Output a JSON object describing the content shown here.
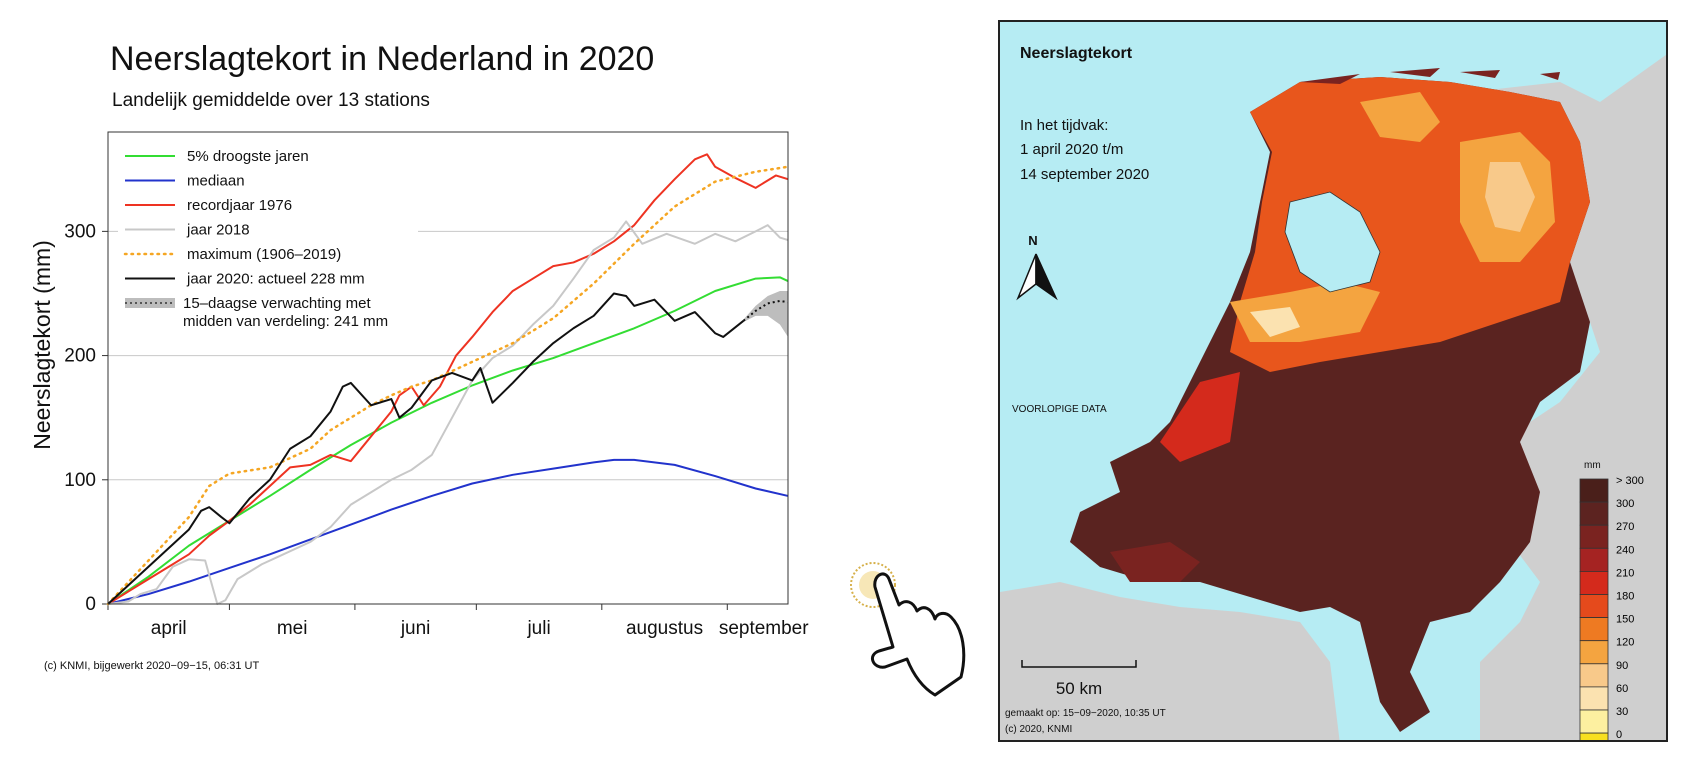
{
  "chart_data": [
    {
      "type": "line",
      "title": "Neerslagtekort in Nederland in 2020",
      "subtitle": "Landelijk gemiddelde over 13 stations",
      "ylabel": "Neerslagtekort (mm)",
      "ylim": [
        0,
        380
      ],
      "yticks": [
        0,
        100,
        200,
        300
      ],
      "xlim": [
        0,
        168
      ],
      "month_labels": [
        {
          "label": "april",
          "x": 15
        },
        {
          "label": "mei",
          "x": 45.5
        },
        {
          "label": "juni",
          "x": 76
        },
        {
          "label": "juli",
          "x": 106.5
        },
        {
          "label": "augustus",
          "x": 137.5
        },
        {
          "label": "september",
          "x": 162
        }
      ],
      "grid": "horizontal",
      "legend_position": "top-left",
      "series": [
        {
          "name": "5% droogste jaren",
          "color": "#33dd33",
          "style": "solid",
          "points": [
            [
              0,
              0
            ],
            [
              10,
              22
            ],
            [
              20,
              47
            ],
            [
              30,
              67
            ],
            [
              40,
              87
            ],
            [
              50,
              108
            ],
            [
              60,
              128
            ],
            [
              70,
              146
            ],
            [
              80,
              162
            ],
            [
              90,
              176
            ],
            [
              100,
              188
            ],
            [
              110,
              198
            ],
            [
              120,
              210
            ],
            [
              130,
              222
            ],
            [
              140,
              236
            ],
            [
              150,
              252
            ],
            [
              160,
              262
            ],
            [
              166,
              263
            ],
            [
              168,
              260
            ]
          ]
        },
        {
          "name": "mediaan",
          "color": "#2233cc",
          "style": "solid",
          "points": [
            [
              0,
              0
            ],
            [
              10,
              8
            ],
            [
              20,
              18
            ],
            [
              30,
              29
            ],
            [
              40,
              40
            ],
            [
              50,
              52
            ],
            [
              60,
              64
            ],
            [
              70,
              76
            ],
            [
              80,
              87
            ],
            [
              90,
              97
            ],
            [
              100,
              104
            ],
            [
              110,
              109
            ],
            [
              120,
              114
            ],
            [
              125,
              116
            ],
            [
              130,
              116
            ],
            [
              140,
              112
            ],
            [
              150,
              103
            ],
            [
              160,
              93
            ],
            [
              168,
              87
            ]
          ]
        },
        {
          "name": "recordjaar 1976",
          "color": "#ee3322",
          "style": "solid",
          "points": [
            [
              0,
              0
            ],
            [
              5,
              10
            ],
            [
              10,
              20
            ],
            [
              15,
              30
            ],
            [
              20,
              40
            ],
            [
              25,
              55
            ],
            [
              30,
              67
            ],
            [
              35,
              80
            ],
            [
              40,
              95
            ],
            [
              45,
              110
            ],
            [
              50,
              112
            ],
            [
              55,
              120
            ],
            [
              60,
              115
            ],
            [
              65,
              135
            ],
            [
              70,
              155
            ],
            [
              72,
              168
            ],
            [
              75,
              175
            ],
            [
              78,
              160
            ],
            [
              82,
              175
            ],
            [
              86,
              200
            ],
            [
              90,
              215
            ],
            [
              95,
              235
            ],
            [
              100,
              252
            ],
            [
              105,
              262
            ],
            [
              110,
              272
            ],
            [
              115,
              275
            ],
            [
              120,
              282
            ],
            [
              125,
              292
            ],
            [
              130,
              305
            ],
            [
              135,
              325
            ],
            [
              140,
              342
            ],
            [
              145,
              358
            ],
            [
              148,
              362
            ],
            [
              150,
              352
            ],
            [
              155,
              343
            ],
            [
              160,
              335
            ],
            [
              165,
              345
            ],
            [
              168,
              342
            ]
          ]
        },
        {
          "name": "jaar 2018",
          "color": "#c8c8c8",
          "style": "solid",
          "points": [
            [
              0,
              0
            ],
            [
              5,
              2
            ],
            [
              8,
              8
            ],
            [
              12,
              12
            ],
            [
              16,
              30
            ],
            [
              20,
              36
            ],
            [
              24,
              35
            ],
            [
              27,
              0
            ],
            [
              29,
              3
            ],
            [
              32,
              20
            ],
            [
              38,
              32
            ],
            [
              42,
              38
            ],
            [
              50,
              50
            ],
            [
              55,
              62
            ],
            [
              60,
              80
            ],
            [
              65,
              90
            ],
            [
              70,
              100
            ],
            [
              75,
              108
            ],
            [
              80,
              120
            ],
            [
              85,
              150
            ],
            [
              90,
              180
            ],
            [
              95,
              198
            ],
            [
              100,
              208
            ],
            [
              105,
              225
            ],
            [
              110,
              240
            ],
            [
              115,
              262
            ],
            [
              120,
              285
            ],
            [
              125,
              295
            ],
            [
              128,
              308
            ],
            [
              132,
              290
            ],
            [
              138,
              298
            ],
            [
              145,
              290
            ],
            [
              150,
              298
            ],
            [
              155,
              292
            ],
            [
              160,
              300
            ],
            [
              163,
              305
            ],
            [
              166,
              295
            ],
            [
              168,
              293
            ]
          ]
        },
        {
          "name": "maximum (1906–2019)",
          "color": "#f5a623",
          "style": "dotted",
          "points": [
            [
              0,
              0
            ],
            [
              10,
              35
            ],
            [
              20,
              70
            ],
            [
              25,
              95
            ],
            [
              30,
              105
            ],
            [
              40,
              110
            ],
            [
              50,
              125
            ],
            [
              55,
              140
            ],
            [
              60,
              150
            ],
            [
              65,
              160
            ],
            [
              70,
              168
            ],
            [
              75,
              175
            ],
            [
              80,
              180
            ],
            [
              90,
              195
            ],
            [
              100,
              210
            ],
            [
              110,
              230
            ],
            [
              120,
              258
            ],
            [
              130,
              290
            ],
            [
              140,
              320
            ],
            [
              150,
              340
            ],
            [
              160,
              348
            ],
            [
              168,
              352
            ]
          ]
        },
        {
          "name": "jaar 2020: actueel 228 mm",
          "color": "#111111",
          "style": "solid",
          "points": [
            [
              0,
              0
            ],
            [
              5,
              15
            ],
            [
              10,
              30
            ],
            [
              15,
              45
            ],
            [
              20,
              60
            ],
            [
              23,
              75
            ],
            [
              25,
              78
            ],
            [
              28,
              70
            ],
            [
              30,
              65
            ],
            [
              35,
              85
            ],
            [
              40,
              100
            ],
            [
              45,
              125
            ],
            [
              50,
              135
            ],
            [
              55,
              155
            ],
            [
              58,
              175
            ],
            [
              60,
              178
            ],
            [
              65,
              160
            ],
            [
              70,
              165
            ],
            [
              72,
              150
            ],
            [
              75,
              158
            ],
            [
              80,
              180
            ],
            [
              85,
              186
            ],
            [
              90,
              180
            ],
            [
              92,
              190
            ],
            [
              95,
              162
            ],
            [
              100,
              178
            ],
            [
              105,
              195
            ],
            [
              110,
              210
            ],
            [
              115,
              222
            ],
            [
              120,
              232
            ],
            [
              125,
              250
            ],
            [
              128,
              248
            ],
            [
              130,
              240
            ],
            [
              135,
              245
            ],
            [
              140,
              228
            ],
            [
              145,
              235
            ],
            [
              150,
              218
            ],
            [
              152,
              215
            ],
            [
              157,
              228
            ]
          ]
        }
      ],
      "forecast": {
        "name": "15–daagse verwachting met",
        "name_line2": "midden van verdeling: 241 mm",
        "band_color": "#bdbdbd",
        "median": [
          [
            157,
            228
          ],
          [
            160,
            236
          ],
          [
            163,
            242
          ],
          [
            166,
            244
          ],
          [
            168,
            243
          ]
        ],
        "upper": [
          [
            157,
            229
          ],
          [
            160,
            240
          ],
          [
            163,
            248
          ],
          [
            166,
            252
          ],
          [
            168,
            252
          ]
        ],
        "lower": [
          [
            157,
            227
          ],
          [
            160,
            232
          ],
          [
            163,
            232
          ],
          [
            166,
            225
          ],
          [
            168,
            215
          ]
        ]
      },
      "credit": "(c) KNMI, bijgewerkt 2020−09−15, 06:31 UT"
    },
    {
      "type": "heatmap",
      "title": "Neerslagtekort",
      "period_line1": "In het tijdvak:",
      "period_line2": "1 april 2020 t/m",
      "period_line3": "14 september 2020",
      "north_label": "N",
      "data_note": "VOORLOPIGE DATA",
      "scale_label": "50 km",
      "made_on": "gemaakt op: 15−09−2020, 10:35 UT",
      "copyright": "(c) 2020, KNMI",
      "legend_unit": "mm",
      "legend_labels": [
        "> 300",
        "300",
        "270",
        "240",
        "210",
        "180",
        "150",
        "120",
        "90",
        "60",
        "30",
        "0"
      ],
      "legend_colors": [
        "#4a1f1a",
        "#5c2320",
        "#7a2320",
        "#a52322",
        "#d42a1c",
        "#e54a1c",
        "#ee7a22",
        "#f4a440",
        "#f8c98a",
        "#fbe2b0",
        "#fdf0a0",
        "#f8e020"
      ]
    }
  ]
}
